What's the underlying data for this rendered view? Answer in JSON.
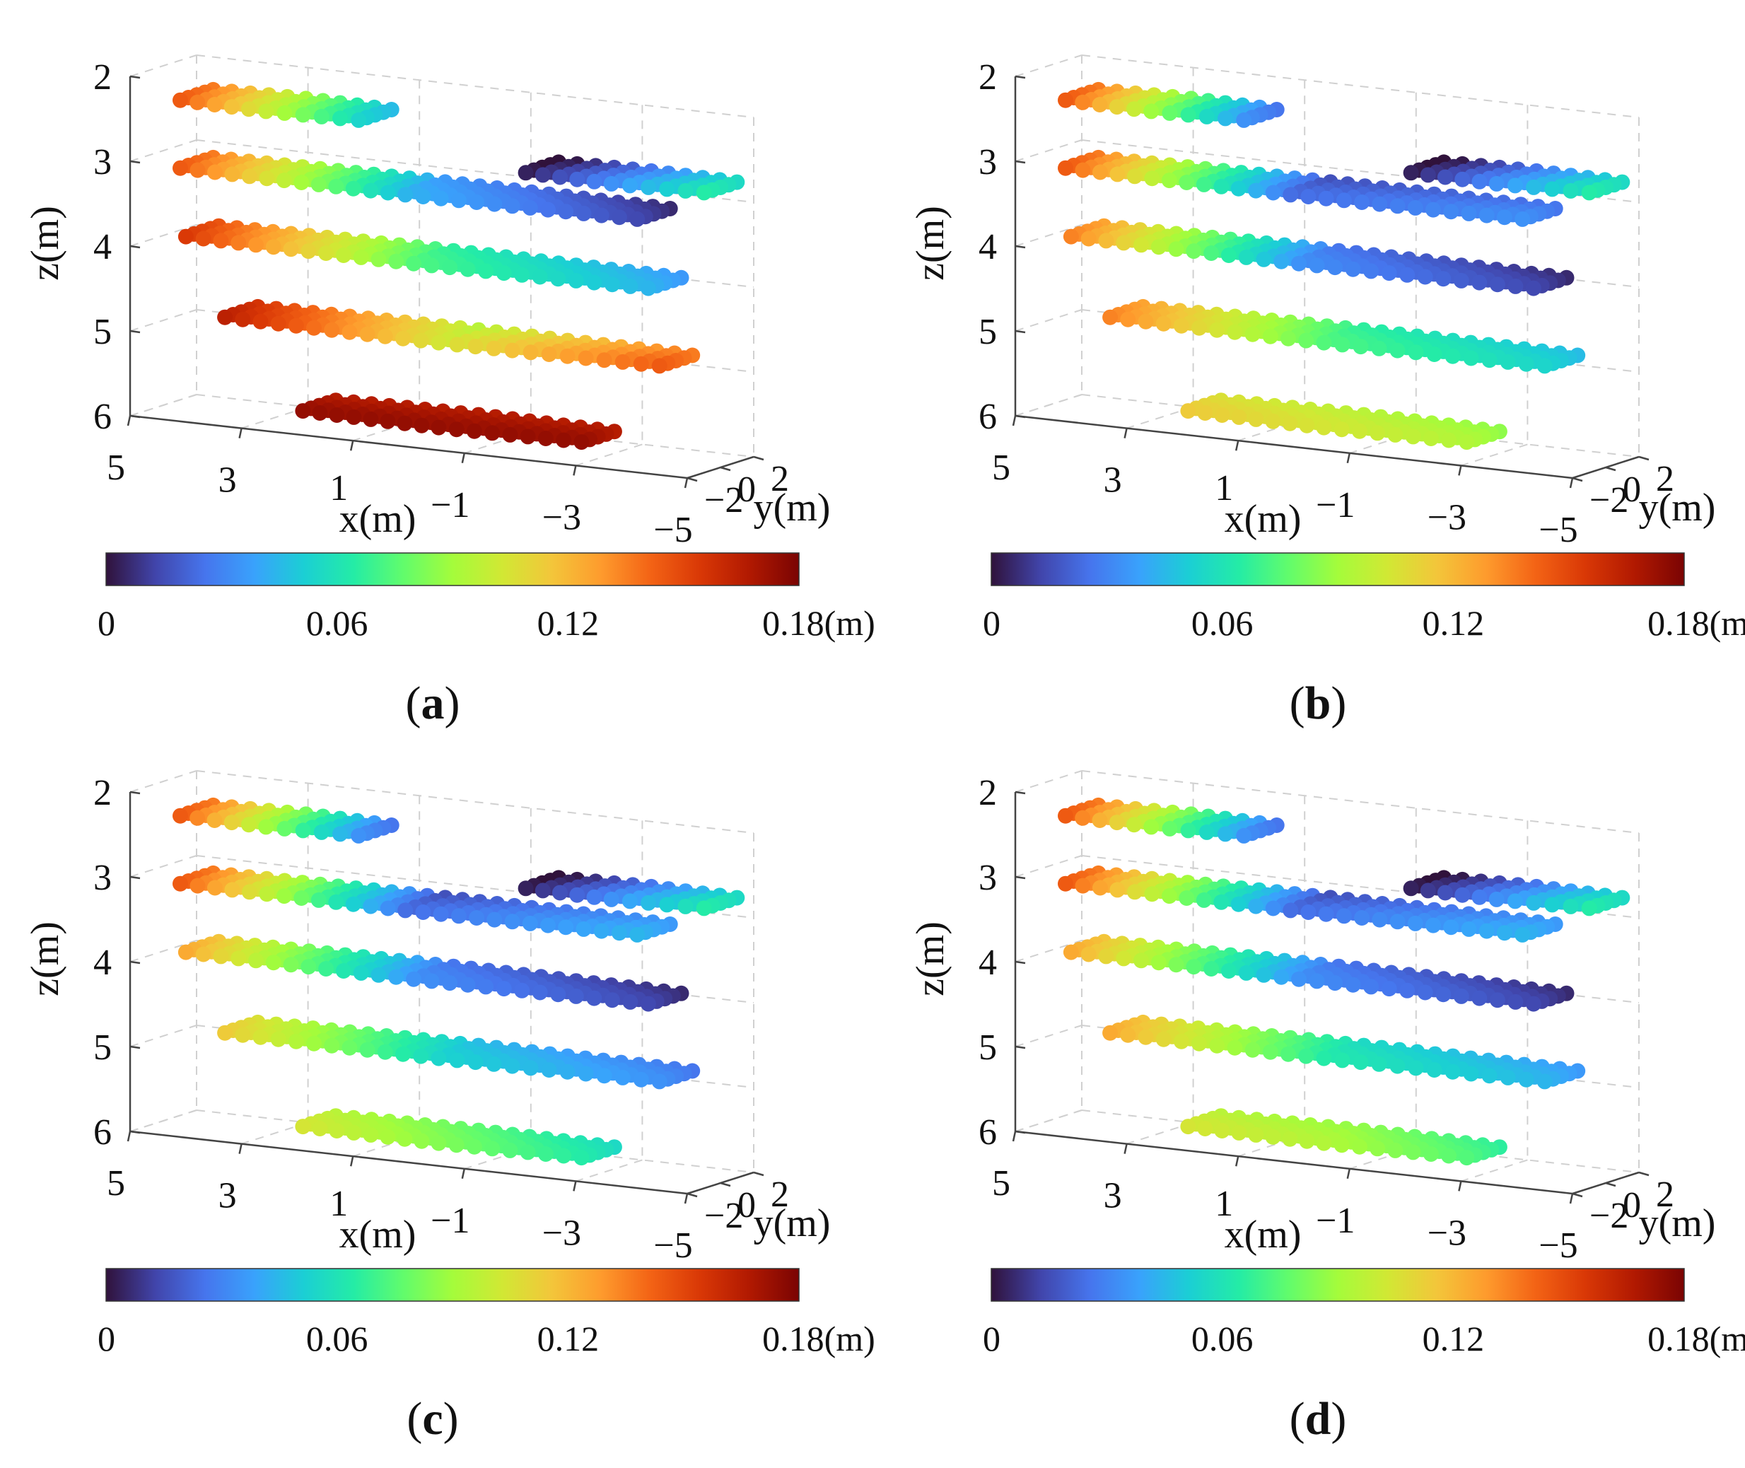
{
  "chart_data": {
    "type": "scatter3d",
    "layers": [
      {
        "z": 2.3,
        "x_range": [
          4.4,
          1.2
        ]
      },
      {
        "z": 3.1,
        "x_range": [
          4.4,
          -3.8
        ]
      },
      {
        "z": 3.9,
        "x_range": [
          4.3,
          -4.0
        ]
      },
      {
        "z": 4.8,
        "x_range": [
          3.6,
          -4.2
        ]
      },
      {
        "z": 5.8,
        "x_range": [
          2.2,
          -2.8
        ]
      }
    ],
    "upper_right_cluster": {
      "z": 2.7,
      "x_range": [
        -1.8,
        -5.0
      ]
    },
    "panels": [
      {
        "label": "(a)",
        "letter": "a",
        "z_label": "z(m)",
        "x_label": "x(m)",
        "y_label": "y(m)",
        "z_ticks": [
          "2",
          "3",
          "4",
          "5",
          "6"
        ],
        "x_ticks": [
          "5",
          "3",
          "1",
          "−1",
          "−3",
          "−5"
        ],
        "y_ticks": [
          "−2",
          "0",
          "2"
        ],
        "zlim": [
          2,
          6
        ],
        "xlim": [
          5,
          -5
        ],
        "ylim": [
          -2,
          2
        ],
        "colorbar": {
          "min": 0,
          "max": 0.18,
          "ticks": [
            "0",
            "0.06",
            "0.12",
            "0.18(m)"
          ]
        },
        "displacement_profiles": [
          [
            0.14,
            0.05
          ],
          [
            0.14,
            0.04,
            0.01
          ],
          [
            0.15,
            0.07,
            0.04
          ],
          [
            0.16,
            0.1,
            0.14
          ],
          [
            0.17,
            0.17,
            0.17
          ]
        ],
        "upper_right_profile": [
          0.0,
          0.06
        ]
      },
      {
        "label": "(b)",
        "letter": "b",
        "z_label": "z(m)",
        "x_label": "x(m)",
        "y_label": "y(m)",
        "z_ticks": [
          "2",
          "3",
          "4",
          "5",
          "6"
        ],
        "x_ticks": [
          "5",
          "3",
          "1",
          "−1",
          "−3",
          "−5"
        ],
        "y_ticks": [
          "−2",
          "0",
          "2"
        ],
        "zlim": [
          2,
          6
        ],
        "xlim": [
          5,
          -5
        ],
        "ylim": [
          -2,
          2
        ],
        "colorbar": {
          "min": 0,
          "max": 0.18,
          "ticks": [
            "0",
            "0.06",
            "0.12",
            "0.18(m)"
          ]
        },
        "displacement_profiles": [
          [
            0.14,
            0.03
          ],
          [
            0.14,
            0.02,
            0.03
          ],
          [
            0.13,
            0.03,
            0.01
          ],
          [
            0.13,
            0.07,
            0.05
          ],
          [
            0.11,
            0.1,
            0.09
          ]
        ],
        "upper_right_profile": [
          0.0,
          0.06
        ]
      },
      {
        "label": "(c)",
        "letter": "c",
        "z_label": "z(m)",
        "x_label": "x(m)",
        "y_label": "y(m)",
        "z_ticks": [
          "2",
          "3",
          "4",
          "5",
          "6"
        ],
        "x_ticks": [
          "5",
          "3",
          "1",
          "−1",
          "−3",
          "−5"
        ],
        "y_ticks": [
          "−2",
          "0",
          "2"
        ],
        "zlim": [
          2,
          6
        ],
        "xlim": [
          5,
          -5
        ],
        "ylim": [
          -2,
          2
        ],
        "colorbar": {
          "min": 0,
          "max": 0.18,
          "ticks": [
            "0",
            "0.06",
            "0.12",
            "0.18(m)"
          ]
        },
        "displacement_profiles": [
          [
            0.14,
            0.03
          ],
          [
            0.14,
            0.02,
            0.04
          ],
          [
            0.12,
            0.03,
            0.01
          ],
          [
            0.11,
            0.05,
            0.03
          ],
          [
            0.1,
            0.08,
            0.06
          ]
        ],
        "upper_right_profile": [
          0.0,
          0.06
        ]
      },
      {
        "label": "(d)",
        "letter": "d",
        "z_label": "z(m)",
        "x_label": "x(m)",
        "y_label": "y(m)",
        "z_ticks": [
          "2",
          "3",
          "4",
          "5",
          "6"
        ],
        "x_ticks": [
          "5",
          "3",
          "1",
          "−1",
          "−3",
          "−5"
        ],
        "y_ticks": [
          "−2",
          "0",
          "2"
        ],
        "zlim": [
          2,
          6
        ],
        "xlim": [
          5,
          -5
        ],
        "ylim": [
          -2,
          2
        ],
        "colorbar": {
          "min": 0,
          "max": 0.18,
          "ticks": [
            "0",
            "0.06",
            "0.12",
            "0.18(m)"
          ]
        },
        "displacement_profiles": [
          [
            0.14,
            0.03
          ],
          [
            0.14,
            0.02,
            0.04
          ],
          [
            0.12,
            0.03,
            0.01
          ],
          [
            0.12,
            0.06,
            0.04
          ],
          [
            0.1,
            0.09,
            0.07
          ]
        ],
        "upper_right_profile": [
          0.0,
          0.06
        ]
      }
    ]
  },
  "colormap": {
    "name": "turbo",
    "stops": [
      "#30123b",
      "#4145ab",
      "#4675ed",
      "#39a2fc",
      "#1bcfd4",
      "#24eca6",
      "#61fc6c",
      "#a4fc3b",
      "#d1e834",
      "#f3c63a",
      "#fe9b2d",
      "#f36315",
      "#d93806",
      "#b11901",
      "#7a0403"
    ]
  }
}
